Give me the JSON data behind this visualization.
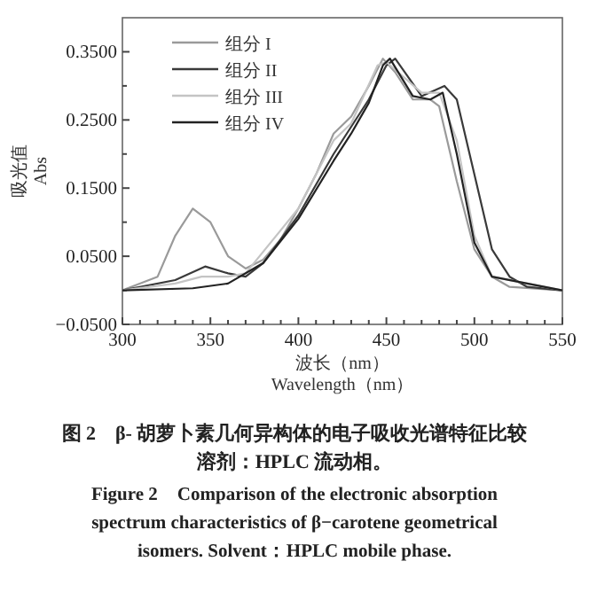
{
  "chart_data": {
    "type": "line",
    "xlabel": "波长（nm）\nWavelength（nm）",
    "ylabel": "吸光值\nAbs",
    "xlim": [
      300,
      550
    ],
    "ylim": [
      -0.05,
      0.4
    ],
    "xticks": [
      300,
      {
        "value": 310,
        "label": null
      },
      {
        "value": 320,
        "label": null
      },
      {
        "value": 330,
        "label": null
      },
      {
        "value": 340,
        "label": null
      },
      350,
      {
        "value": 360,
        "label": null
      },
      {
        "value": 370,
        "label": null
      },
      {
        "value": 380,
        "label": null
      },
      {
        "value": 390,
        "label": null
      },
      400,
      {
        "value": 410,
        "label": null
      },
      {
        "value": 420,
        "label": null
      },
      {
        "value": 430,
        "label": null
      },
      {
        "value": 440,
        "label": null
      },
      450,
      {
        "value": 460,
        "label": null
      },
      {
        "value": 470,
        "label": null
      },
      {
        "value": 480,
        "label": null
      },
      {
        "value": 490,
        "label": null
      },
      500,
      {
        "value": 510,
        "label": null
      },
      {
        "value": 520,
        "label": null
      },
      {
        "value": 530,
        "label": null
      },
      {
        "value": 540,
        "label": null
      },
      550
    ],
    "yticks": [
      {
        "value": -0.05,
        "label": "−0.0500"
      },
      {
        "value": 0,
        "label": null
      },
      {
        "value": 0.05,
        "label": "0.0500"
      },
      {
        "value": 0.1,
        "label": null
      },
      {
        "value": 0.15,
        "label": "0.1500"
      },
      {
        "value": 0.2,
        "label": null
      },
      {
        "value": 0.25,
        "label": "0.2500"
      },
      {
        "value": 0.3,
        "label": null
      },
      {
        "value": 0.35,
        "label": "0.3500"
      }
    ],
    "legend": "top left",
    "grid": false,
    "line_style": "solid",
    "marker": "none",
    "series": [
      {
        "name": "组分 I",
        "color": "#9a9a9a",
        "x": [
          300,
          320,
          330,
          340,
          350,
          360,
          370,
          380,
          390,
          400,
          410,
          420,
          430,
          440,
          448,
          455,
          465,
          475,
          480,
          490,
          500,
          510,
          520,
          550
        ],
        "values": [
          0,
          0.02,
          0.08,
          0.12,
          0.1,
          0.05,
          0.032,
          0.045,
          0.075,
          0.12,
          0.17,
          0.23,
          0.255,
          0.3,
          0.34,
          0.32,
          0.28,
          0.28,
          0.27,
          0.16,
          0.06,
          0.02,
          0.005,
          0
        ]
      },
      {
        "name": "组分 II",
        "color": "#3a3a3a",
        "x": [
          300,
          330,
          347,
          360,
          370,
          380,
          400,
          420,
          430,
          440,
          450,
          455,
          470,
          483,
          490,
          500,
          510,
          520,
          530,
          550
        ],
        "values": [
          0,
          0.015,
          0.035,
          0.025,
          0.02,
          0.04,
          0.11,
          0.2,
          0.24,
          0.28,
          0.33,
          0.34,
          0.285,
          0.3,
          0.28,
          0.17,
          0.06,
          0.02,
          0.005,
          0
        ]
      },
      {
        "name": "组分 III",
        "color": "#c4c4c4",
        "x": [
          300,
          330,
          345,
          360,
          370,
          400,
          420,
          430,
          445,
          450,
          470,
          480,
          490,
          500,
          510,
          550
        ],
        "values": [
          0,
          0.01,
          0.02,
          0.02,
          0.025,
          0.12,
          0.22,
          0.245,
          0.33,
          0.335,
          0.29,
          0.29,
          0.22,
          0.08,
          0.02,
          0
        ]
      },
      {
        "name": "组分 IV",
        "color": "#222222",
        "x": [
          300,
          340,
          360,
          380,
          400,
          420,
          430,
          440,
          448,
          452,
          465,
          475,
          482,
          490,
          500,
          510,
          550
        ],
        "values": [
          0,
          0.003,
          0.01,
          0.04,
          0.105,
          0.19,
          0.23,
          0.275,
          0.33,
          0.34,
          0.285,
          0.28,
          0.29,
          0.2,
          0.07,
          0.02,
          0
        ]
      }
    ],
    "annotations": [
      "图 2　β- 胡萝卜素几何异构体的电子吸收光谱特征比较",
      "溶剂：HPLC 流动相。",
      "Figure 2　Comparison of the electronic absorption\nspectrum characteristics of β−carotene geometrical\nisomers. Solvent：HPLC mobile phase."
    ]
  }
}
